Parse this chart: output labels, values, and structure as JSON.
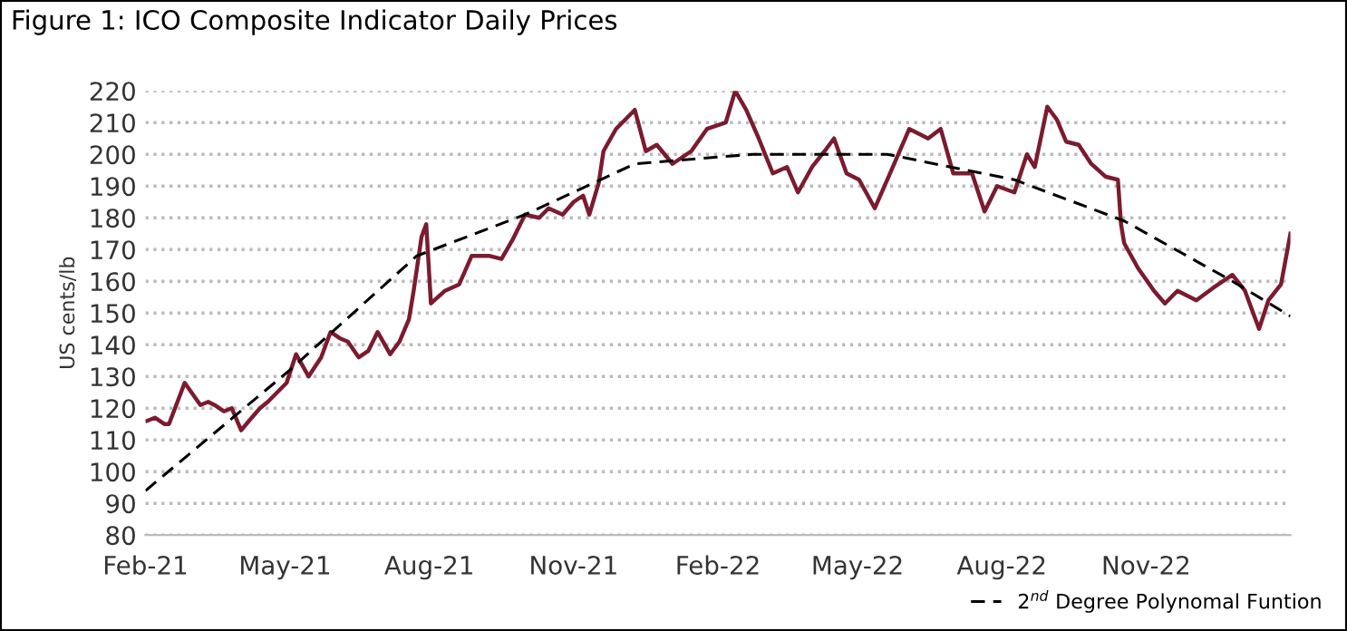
{
  "chart_data": {
    "type": "line",
    "title": "Figure 1: ICO Composite Indicator Daily Prices",
    "ylabel": "US cents/lb",
    "series": [
      {
        "color": "#7b1b2f",
        "line_style": "solid",
        "x": [
          "2021-02-02",
          "2021-02-07",
          "2021-02-13",
          "2021-02-16",
          "2021-02-26",
          "2021-03-08",
          "2021-03-13",
          "2021-03-17",
          "2021-03-23",
          "2021-03-28",
          "2021-04-03",
          "2021-04-08",
          "2021-04-15",
          "2021-04-20",
          "2021-04-26",
          "2021-05-02",
          "2021-05-08",
          "2021-05-16",
          "2021-05-24",
          "2021-05-30",
          "2021-06-05",
          "2021-06-10",
          "2021-06-17",
          "2021-06-23",
          "2021-06-29",
          "2021-07-07",
          "2021-07-13",
          "2021-07-19",
          "2021-07-22",
          "2021-07-27",
          "2021-07-30",
          "2021-08-02",
          "2021-08-11",
          "2021-08-20",
          "2021-08-28",
          "2021-09-08",
          "2021-09-16",
          "2021-09-23",
          "2021-10-01",
          "2021-10-10",
          "2021-10-16",
          "2021-10-25",
          "2021-11-01",
          "2021-11-07",
          "2021-11-11",
          "2021-11-17",
          "2021-11-20",
          "2021-11-28",
          "2021-12-10",
          "2021-12-17",
          "2021-12-24",
          "2022-01-03",
          "2022-01-15",
          "2022-01-25",
          "2022-02-06",
          "2022-02-12",
          "2022-02-19",
          "2022-02-27",
          "2022-03-08",
          "2022-03-17",
          "2022-03-24",
          "2022-04-02",
          "2022-04-10",
          "2022-04-16",
          "2022-04-24",
          "2022-05-02",
          "2022-05-12",
          "2022-05-20",
          "2022-06-03",
          "2022-06-15",
          "2022-06-23",
          "2022-07-01",
          "2022-07-13",
          "2022-07-21",
          "2022-07-29",
          "2022-08-09",
          "2022-08-17",
          "2022-08-22",
          "2022-08-30",
          "2022-09-05",
          "2022-09-11",
          "2022-09-19",
          "2022-09-27",
          "2022-10-06",
          "2022-10-14",
          "2022-10-16",
          "2022-10-18",
          "2022-10-27",
          "2022-11-06",
          "2022-11-13",
          "2022-11-21",
          "2022-12-03",
          "2022-12-14",
          "2022-12-26",
          "2023-01-03",
          "2023-01-12",
          "2023-01-18",
          "2023-01-26",
          "2023-02-01"
        ],
        "values": [
          116,
          117,
          115,
          115,
          128,
          121,
          122,
          121,
          119,
          120,
          113,
          116,
          120,
          122,
          125,
          128,
          137,
          130,
          136,
          144,
          142,
          141,
          136,
          138,
          144,
          137,
          141,
          148,
          157,
          174,
          178,
          153,
          157,
          159,
          168,
          168,
          167,
          173,
          181,
          180,
          183,
          181,
          185,
          187,
          181,
          191,
          201,
          208,
          214,
          201,
          203,
          197,
          201,
          208,
          210,
          220,
          214,
          205,
          194,
          196,
          188,
          196,
          201,
          205,
          194,
          192,
          183,
          192,
          208,
          205,
          208,
          194,
          194,
          182,
          190,
          188,
          200,
          196,
          215,
          211,
          204,
          203,
          197,
          193,
          192,
          178,
          172,
          164,
          157,
          153,
          157,
          154,
          158,
          162,
          157,
          145,
          154,
          159,
          175
        ]
      },
      {
        "name": "2$^{nd}$ Degree Polynomal Funtion",
        "color": "#000000",
        "line_style": "dashed",
        "x": [
          "2021-02-01",
          "2021-05-04",
          "2021-07-24",
          "2021-10-01",
          "2021-12-10",
          "2022-02-23",
          "2022-05-20",
          "2022-08-09",
          "2022-10-18",
          "2022-12-26",
          "2023-02-01"
        ],
        "values": [
          94,
          132,
          168,
          181,
          197,
          200,
          200,
          192,
          179,
          160,
          149
        ]
      }
    ],
    "xlim": [
      "2021-02-01",
      "2023-02-01"
    ],
    "xticks": [
      {
        "value": "2021-02-01",
        "label": "Feb-21"
      },
      {
        "value": "2021-05-01",
        "label": "May-21"
      },
      {
        "value": "2021-08-01",
        "label": "Aug-21"
      },
      {
        "value": "2021-11-01",
        "label": "Nov-21"
      },
      {
        "value": "2022-02-01",
        "label": "Feb-22"
      },
      {
        "value": "2022-05-01",
        "label": "May-22"
      },
      {
        "value": "2022-08-01",
        "label": "Aug-22"
      },
      {
        "value": "2022-11-01",
        "label": "Nov-22"
      }
    ],
    "ylim": [
      80,
      220
    ],
    "yticks": [
      80,
      90,
      100,
      110,
      120,
      130,
      140,
      150,
      160,
      170,
      180,
      190,
      200,
      210,
      220
    ],
    "grid": "y",
    "legend": "bottom right",
    "marker": "none"
  }
}
